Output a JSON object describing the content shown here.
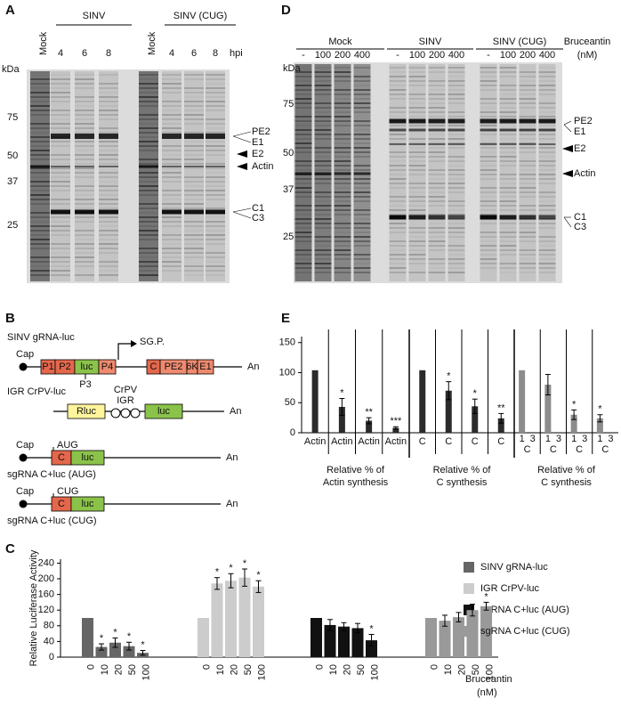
{
  "panel_a": {
    "letter": "A",
    "groups": [
      "SINV",
      "SINV (CUG)"
    ],
    "lanes": [
      "Mock",
      "4",
      "6",
      "8",
      "Mock",
      "4",
      "6",
      "8"
    ],
    "time_unit": "hpi",
    "mw_unit": "kDa",
    "markers": [
      "75",
      "50",
      "37",
      "25"
    ],
    "bands": [
      "PE2",
      "E1",
      "E2",
      "Actin",
      "C1",
      "C3"
    ]
  },
  "panel_d": {
    "letter": "D",
    "groups": [
      "Mock",
      "SINV",
      "SINV (CUG)"
    ],
    "lanes": [
      "-",
      "100",
      "200",
      "400",
      "-",
      "100",
      "200",
      "400",
      "-",
      "100",
      "200",
      "400"
    ],
    "treatment": [
      "Bruceantin",
      "(nM)"
    ],
    "mw_unit": "kDa",
    "markers": [
      "75",
      "50",
      "37",
      "25"
    ],
    "bands": [
      "PE2",
      "E1",
      "E2",
      "Actin",
      "C1",
      "C3"
    ]
  },
  "panel_b": {
    "letter": "B",
    "constructs": [
      {
        "name": "SINV gRNA-luc",
        "cap": "Cap",
        "boxes": [
          "P1",
          "P2",
          "luc",
          "P4",
          "C",
          "PE2",
          "6K",
          "E1"
        ],
        "below": "P3",
        "promoter": "SG.P.",
        "tail": "An"
      },
      {
        "name": "IGR CrPV-luc",
        "boxes": [
          "Rluc",
          "luc"
        ],
        "ires": [
          "CrPV",
          "IGR"
        ],
        "tail": "An"
      },
      {
        "name": "sgRNA C+luc (AUG)",
        "cap": "Cap",
        "start": "AUG",
        "boxes": [
          "C",
          "luc"
        ],
        "tail": "An"
      },
      {
        "name": "sgRNA C+luc (CUG)",
        "cap": "Cap",
        "start": "CUG",
        "boxes": [
          "C",
          "luc"
        ],
        "tail": "An"
      }
    ]
  },
  "chart_data": [
    {
      "type": "bar",
      "letter": "C",
      "y_label": "Relative Luciferase Activity",
      "x_label": [
        "Bruceantin",
        "(nM)"
      ],
      "categories": [
        "0",
        "10",
        "20",
        "50",
        "100"
      ],
      "ylim": [
        0,
        250
      ],
      "yticks": [
        0,
        40,
        80,
        120,
        160,
        200,
        240
      ],
      "legend": "right",
      "series": [
        {
          "name": "SINV gRNA-luc",
          "color": "#666666",
          "values": [
            100,
            26,
            37,
            28,
            11
          ],
          "errors": [
            null,
            8,
            12,
            10,
            6
          ],
          "annotations": [
            null,
            "*",
            "*",
            "*",
            "*"
          ]
        },
        {
          "name": "IGR CrPV-luc",
          "color": "#cccccc",
          "values": [
            100,
            188,
            195,
            203,
            180
          ],
          "errors": [
            null,
            15,
            18,
            22,
            15
          ],
          "annotations": [
            null,
            "*",
            "*",
            "*",
            "*"
          ]
        },
        {
          "name": "sgRNA C+luc (AUG)",
          "color": "#111111",
          "values": [
            100,
            82,
            78,
            74,
            43
          ],
          "errors": [
            null,
            14,
            10,
            12,
            15
          ],
          "annotations": [
            null,
            null,
            null,
            null,
            "*"
          ]
        },
        {
          "name": "sgRNA C+luc (CUG)",
          "color": "#999999",
          "values": [
            100,
            93,
            102,
            120,
            130
          ],
          "errors": [
            null,
            14,
            12,
            15,
            10
          ],
          "annotations": [
            null,
            null,
            null,
            null,
            "*"
          ]
        }
      ]
    },
    {
      "type": "bar",
      "letter": "E",
      "ylim": [
        0,
        160
      ],
      "yticks": [
        0,
        50,
        100,
        150
      ],
      "groups": [
        {
          "label": [
            "Relative % of",
            "Actin synthesis"
          ],
          "color": "#2b2b2b",
          "tick_labels": [
            "Actin",
            "Actin",
            "Actin",
            "Actin"
          ],
          "values": [
            104,
            43,
            20,
            8
          ],
          "errors": [
            null,
            14,
            5,
            2
          ],
          "annotations": [
            null,
            "*",
            "**",
            "***"
          ]
        },
        {
          "label": [
            "Relative % of",
            "C synthesis"
          ],
          "color": "#2b2b2b",
          "tick_labels": [
            "C",
            "C",
            "C",
            "C"
          ],
          "values": [
            104,
            70,
            44,
            24
          ],
          "errors": [
            null,
            15,
            12,
            8
          ],
          "annotations": [
            null,
            "*",
            "*",
            "**"
          ]
        },
        {
          "label": [
            "Relative % of",
            "C synthesis"
          ],
          "color": "#8c8c8c",
          "lane_labels": [
            [
              "1",
              "3"
            ],
            [
              "1",
              "3"
            ],
            [
              "1",
              "3"
            ],
            [
              "1",
              "3"
            ]
          ],
          "tick_labels": [
            "C",
            "C",
            "C",
            "C"
          ],
          "values": [
            104,
            80,
            30,
            24
          ],
          "errors": [
            null,
            17,
            8,
            6
          ],
          "annotations": [
            null,
            null,
            "*",
            "*"
          ]
        }
      ]
    }
  ]
}
